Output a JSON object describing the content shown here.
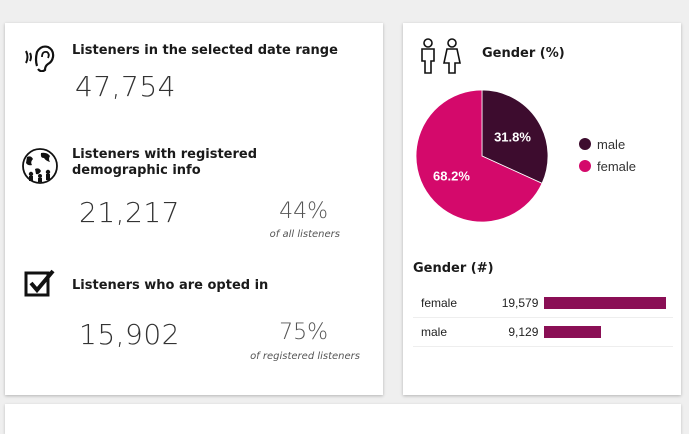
{
  "listeners": {
    "date_range": {
      "title": "Listeners in the selected date range",
      "value": "47,754"
    },
    "registered": {
      "title": "Listeners with registered demographic info",
      "value": "21,217",
      "pct": "44%",
      "pct_sub": "of all  listeners"
    },
    "opted_in": {
      "title": "Listeners who are opted in",
      "value": "15,902",
      "pct": "75%",
      "pct_sub": "of registered listeners"
    }
  },
  "gender_pct": {
    "title": "Gender (%)",
    "legend": [
      {
        "label": "male",
        "color": "#3d0c2e"
      },
      {
        "label": "female",
        "color": "#d4096b"
      }
    ]
  },
  "gender_num": {
    "title": "Gender (#)",
    "rows": [
      {
        "label": "female",
        "count": "19,579",
        "value": 19579
      },
      {
        "label": "male",
        "count": "9,129",
        "value": 9129
      }
    ]
  },
  "chart_data": [
    {
      "type": "pie",
      "title": "Gender (%)",
      "categories": [
        "male",
        "female"
      ],
      "values": [
        31.8,
        68.2
      ],
      "labels": [
        "31.8%",
        "68.2%"
      ],
      "colors": [
        "#3d0c2e",
        "#d4096b"
      ],
      "legend": "right"
    },
    {
      "type": "bar",
      "title": "Gender (#)",
      "categories": [
        "female",
        "male"
      ],
      "values": [
        19579,
        9129
      ],
      "data_labels": [
        "19,579",
        "9,129"
      ],
      "color": "#8a0f55"
    }
  ]
}
